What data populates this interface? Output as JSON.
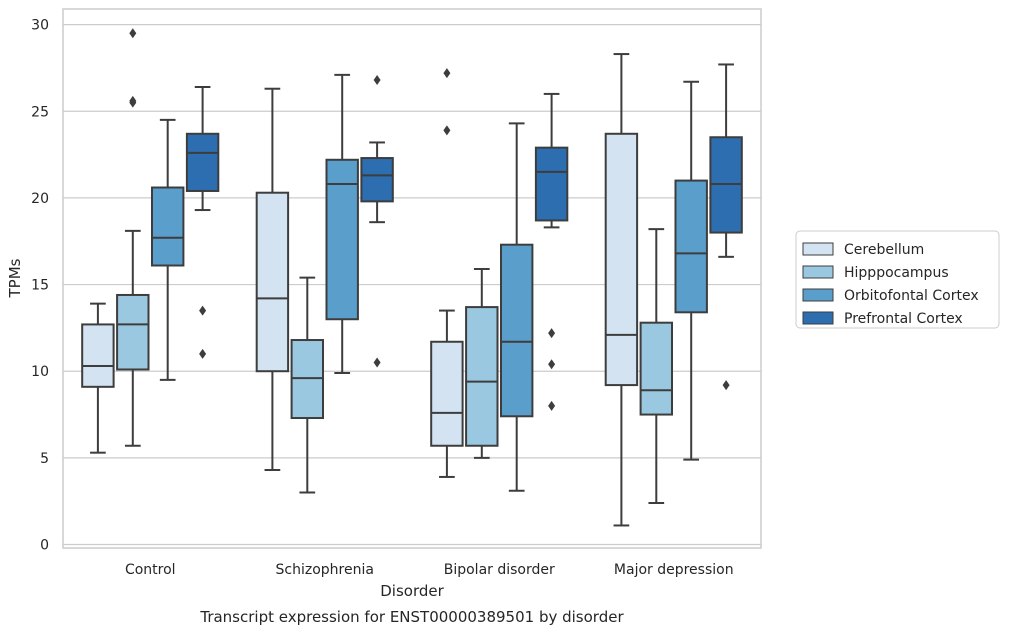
{
  "chart_data": {
    "type": "boxplot",
    "caption": "Transcript expression for ENST00000389501 by disorder",
    "xlabel": "Disorder",
    "ylabel": "TPMs",
    "ylim": [
      -0.2,
      30.9
    ],
    "yticks": [
      0,
      5,
      10,
      15,
      20,
      25,
      30
    ],
    "grid": "horizontal",
    "legend_position": "right",
    "categories": [
      "Control",
      "Schizophrenia",
      "Bipolar disorder",
      "Major depression"
    ],
    "series": [
      {
        "name": "Cerebellum",
        "color": "#d3e3f1",
        "boxes": [
          {
            "whisker_low": 5.3,
            "q1": 9.1,
            "median": 10.3,
            "q3": 12.7,
            "whisker_high": 13.9,
            "outliers": []
          },
          {
            "whisker_low": 4.3,
            "q1": 10.0,
            "median": 14.2,
            "q3": 20.3,
            "whisker_high": 26.3,
            "outliers": []
          },
          {
            "whisker_low": 3.9,
            "q1": 5.7,
            "median": 7.6,
            "q3": 11.7,
            "whisker_high": 13.5,
            "outliers": [
              23.9,
              27.2
            ]
          },
          {
            "whisker_low": 1.1,
            "q1": 9.2,
            "median": 12.1,
            "q3": 23.7,
            "whisker_high": 28.3,
            "outliers": []
          }
        ]
      },
      {
        "name": "Hipppocampus",
        "color": "#9ac8e0",
        "boxes": [
          {
            "whisker_low": 5.7,
            "q1": 10.1,
            "median": 12.7,
            "q3": 14.4,
            "whisker_high": 18.1,
            "outliers": [
              25.5,
              25.6,
              29.5
            ]
          },
          {
            "whisker_low": 3.0,
            "q1": 7.3,
            "median": 9.6,
            "q3": 11.8,
            "whisker_high": 15.4,
            "outliers": []
          },
          {
            "whisker_low": 5.0,
            "q1": 5.7,
            "median": 9.4,
            "q3": 13.7,
            "whisker_high": 15.9,
            "outliers": []
          },
          {
            "whisker_low": 2.4,
            "q1": 7.5,
            "median": 8.9,
            "q3": 12.8,
            "whisker_high": 18.2,
            "outliers": []
          }
        ]
      },
      {
        "name": "Orbitofontal Cortex",
        "color": "#5a9ecc",
        "boxes": [
          {
            "whisker_low": 9.5,
            "q1": 16.1,
            "median": 17.7,
            "q3": 20.6,
            "whisker_high": 24.5,
            "outliers": []
          },
          {
            "whisker_low": 9.9,
            "q1": 13.0,
            "median": 20.8,
            "q3": 22.2,
            "whisker_high": 27.1,
            "outliers": []
          },
          {
            "whisker_low": 3.1,
            "q1": 7.4,
            "median": 11.7,
            "q3": 17.3,
            "whisker_high": 24.3,
            "outliers": []
          },
          {
            "whisker_low": 4.9,
            "q1": 13.4,
            "median": 16.8,
            "q3": 21.0,
            "whisker_high": 26.7,
            "outliers": []
          }
        ]
      },
      {
        "name": "Prefrontal Cortex",
        "color": "#2c6eb0",
        "boxes": [
          {
            "whisker_low": 19.3,
            "q1": 20.4,
            "median": 22.6,
            "q3": 23.7,
            "whisker_high": 26.4,
            "outliers": [
              11.0,
              13.5
            ]
          },
          {
            "whisker_low": 18.6,
            "q1": 19.8,
            "median": 21.3,
            "q3": 22.3,
            "whisker_high": 23.2,
            "outliers": [
              10.5,
              26.8
            ]
          },
          {
            "whisker_low": 18.3,
            "q1": 18.7,
            "median": 21.5,
            "q3": 22.9,
            "whisker_high": 26.0,
            "outliers": [
              8.0,
              10.4,
              12.2
            ]
          },
          {
            "whisker_low": 16.6,
            "q1": 18.0,
            "median": 20.8,
            "q3": 23.5,
            "whisker_high": 27.7,
            "outliers": [
              9.2
            ]
          }
        ]
      }
    ]
  }
}
